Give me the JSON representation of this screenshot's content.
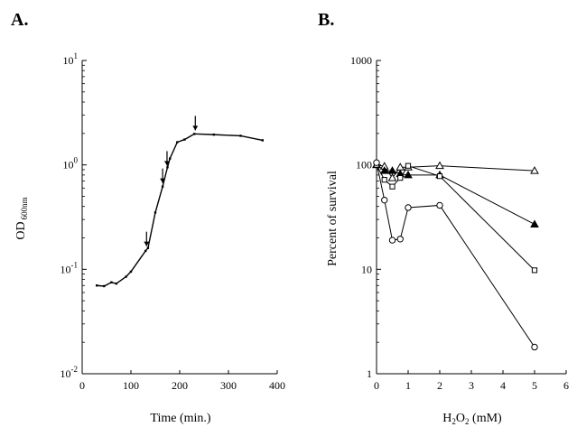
{
  "chart_data": [
    {
      "type": "line",
      "panel": "A.",
      "xlabel": "Time (min.)",
      "ylabel": "OD",
      "ylabel_sub": "600nm",
      "xlim": [
        0,
        400
      ],
      "ylim": [
        0.01,
        10
      ],
      "yscale": "log",
      "xticks": [
        "0",
        "100",
        "200",
        "300",
        "400"
      ],
      "yticks": [
        {
          "value": 0.01,
          "base": "10",
          "exp": "-2"
        },
        {
          "value": 0.1,
          "base": "10",
          "exp": "-1"
        },
        {
          "value": 1,
          "base": "10",
          "exp": "0"
        },
        {
          "value": 10,
          "base": "10",
          "exp": "1"
        }
      ],
      "series": [
        {
          "x": [
            30,
            45,
            60,
            70,
            90,
            100,
            130,
            135,
            150,
            165,
            175,
            180,
            195,
            210,
            230,
            270,
            325,
            370
          ],
          "y": [
            0.07,
            0.069,
            0.075,
            0.073,
            0.085,
            0.095,
            0.15,
            0.16,
            0.35,
            0.62,
            0.95,
            1.15,
            1.65,
            1.75,
            1.98,
            1.95,
            1.9,
            1.72
          ]
        }
      ],
      "arrows_at_x": [
        132,
        165,
        174,
        232
      ]
    },
    {
      "type": "line",
      "panel": "B.",
      "xlabel": "H",
      "xlabel_sub": "2",
      "xlabel_mid": "O",
      "xlabel_sub2": "2",
      "xlabel_end": " (mM)",
      "ylabel": "Percent of survival",
      "xlim": [
        0,
        6
      ],
      "ylim": [
        1,
        1000
      ],
      "yscale": "log",
      "xticks": [
        "0",
        "1",
        "2",
        "3",
        "4",
        "5",
        "6"
      ],
      "yticks": [
        {
          "value": 1,
          "label": "1"
        },
        {
          "value": 10,
          "label": "10"
        },
        {
          "value": 100,
          "label": "100"
        },
        {
          "value": 1000,
          "label": "1000"
        }
      ],
      "series": [
        {
          "marker": "triangle-open",
          "x": [
            0,
            0.25,
            0.5,
            0.75,
            1,
            2,
            5
          ],
          "y": [
            100,
            97,
            75,
            95,
            95,
            98,
            88
          ]
        },
        {
          "marker": "triangle-filled",
          "x": [
            0,
            0.25,
            0.5,
            0.75,
            1,
            2,
            5
          ],
          "y": [
            100,
            88,
            88,
            82,
            80,
            80,
            27
          ]
        },
        {
          "marker": "square-open",
          "x": [
            0,
            0.25,
            0.5,
            0.75,
            1,
            2,
            5
          ],
          "y": [
            100,
            72,
            62,
            75,
            98,
            78,
            9.8
          ]
        },
        {
          "marker": "circle-open",
          "x": [
            0,
            0.25,
            0.5,
            0.75,
            1,
            2,
            5
          ],
          "y": [
            105,
            46,
            19,
            19.5,
            39,
            41,
            1.8
          ]
        }
      ]
    }
  ]
}
